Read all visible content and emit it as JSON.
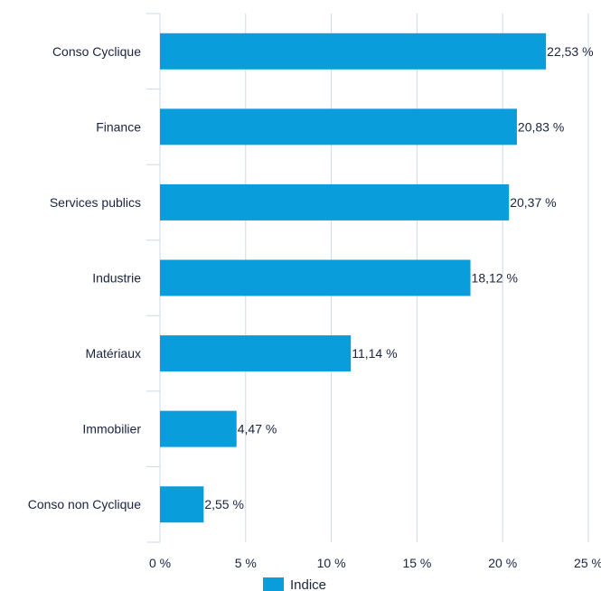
{
  "chart_data": {
    "type": "bar",
    "orientation": "horizontal",
    "categories": [
      "Conso Cyclique",
      "Finance",
      "Services publics",
      "Industrie",
      "Matériaux",
      "Immobilier",
      "Conso non Cyclique"
    ],
    "series": [
      {
        "name": "Indice",
        "values": [
          22.53,
          20.83,
          20.37,
          18.12,
          11.14,
          4.47,
          2.55
        ],
        "labels": [
          "22,53 %",
          "20,83 %",
          "20,37 %",
          "18,12 %",
          "11,14 %",
          "4,47 %",
          "2,55 %"
        ]
      }
    ],
    "xlim": [
      0,
      25
    ],
    "x_ticks": [
      0,
      5,
      10,
      15,
      20,
      25
    ],
    "x_tick_labels": [
      "0 %",
      "5 %",
      "10 %",
      "15 %",
      "20 %",
      "25 %"
    ],
    "grid": "vertical",
    "legend_position": "bottom",
    "colors": {
      "bar": "#0a9ddb",
      "grid": "#cfd8e6",
      "text": "#1a2340"
    }
  }
}
